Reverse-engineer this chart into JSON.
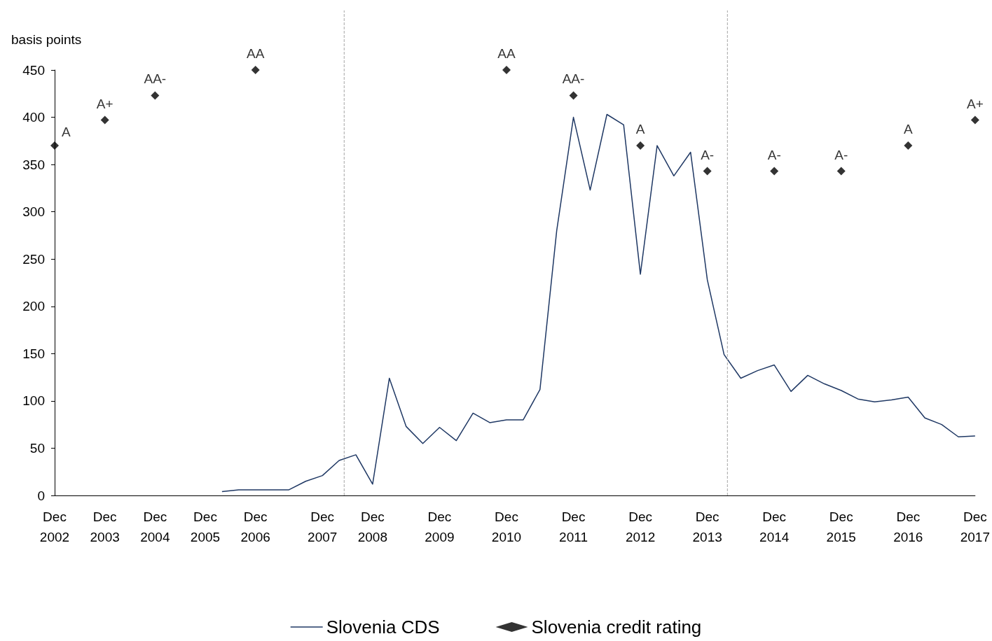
{
  "chart_data": {
    "type": "line",
    "ylabel": "basis points",
    "categories": [
      "Dec 2002",
      null,
      null,
      "Dec 2003",
      null,
      null,
      "Dec 2004",
      null,
      null,
      "Dec 2005",
      null,
      null,
      "Dec 2006",
      null,
      null,
      null,
      "Dec 2007",
      null,
      null,
      "Dec 2008",
      null,
      null,
      null,
      "Dec 2009",
      null,
      null,
      null,
      "Dec 2010",
      null,
      null,
      null,
      "Dec 2011",
      null,
      null,
      null,
      "Dec 2012",
      null,
      null,
      null,
      "Dec 2013",
      null,
      null,
      null,
      "Dec 2014",
      null,
      null,
      null,
      "Dec 2015",
      null,
      null,
      null,
      "Dec 2016",
      null,
      null,
      null,
      "Dec 2017"
    ],
    "series": [
      {
        "name": "Slovenia CDS",
        "color": "#1f3864",
        "marker": "none",
        "values": [
          null,
          null,
          null,
          null,
          null,
          null,
          null,
          null,
          null,
          null,
          4,
          6,
          6,
          6,
          6,
          15,
          21,
          37,
          43,
          12,
          124,
          73,
          55,
          72,
          58,
          87,
          77,
          80,
          80,
          112,
          280,
          400,
          323,
          403,
          392,
          234,
          370,
          338,
          363,
          228,
          149,
          124,
          132,
          138,
          110,
          127,
          118,
          111,
          102,
          99,
          101,
          104,
          82,
          75,
          62,
          63
        ]
      },
      {
        "name": "Slovenia credit rating",
        "type": "scatter",
        "color": "#000000",
        "marker": "diamond",
        "values": [
          370,
          null,
          null,
          397,
          null,
          null,
          423,
          null,
          null,
          null,
          null,
          null,
          450,
          null,
          null,
          null,
          null,
          null,
          null,
          null,
          null,
          null,
          null,
          null,
          null,
          null,
          null,
          450,
          null,
          null,
          null,
          423,
          null,
          null,
          null,
          370,
          null,
          null,
          null,
          343,
          null,
          null,
          null,
          343,
          null,
          null,
          null,
          343,
          null,
          null,
          null,
          370,
          null,
          null,
          null,
          397
        ],
        "value_labels": [
          "A",
          null,
          null,
          "A+",
          null,
          null,
          "AA-",
          null,
          null,
          null,
          null,
          null,
          "AA",
          null,
          null,
          null,
          null,
          null,
          null,
          null,
          null,
          null,
          null,
          null,
          null,
          null,
          null,
          "AA",
          null,
          null,
          null,
          "AA-",
          null,
          null,
          null,
          "A",
          null,
          null,
          null,
          "A-",
          null,
          null,
          null,
          "A-",
          null,
          null,
          null,
          "A-",
          null,
          null,
          null,
          "A",
          null,
          null,
          null,
          "A+"
        ]
      }
    ],
    "ylim": [
      0,
      450
    ],
    "yticks": [
      0,
      50,
      100,
      150,
      200,
      250,
      300,
      350,
      400,
      450
    ],
    "grid": false,
    "legend": "bottom"
  }
}
